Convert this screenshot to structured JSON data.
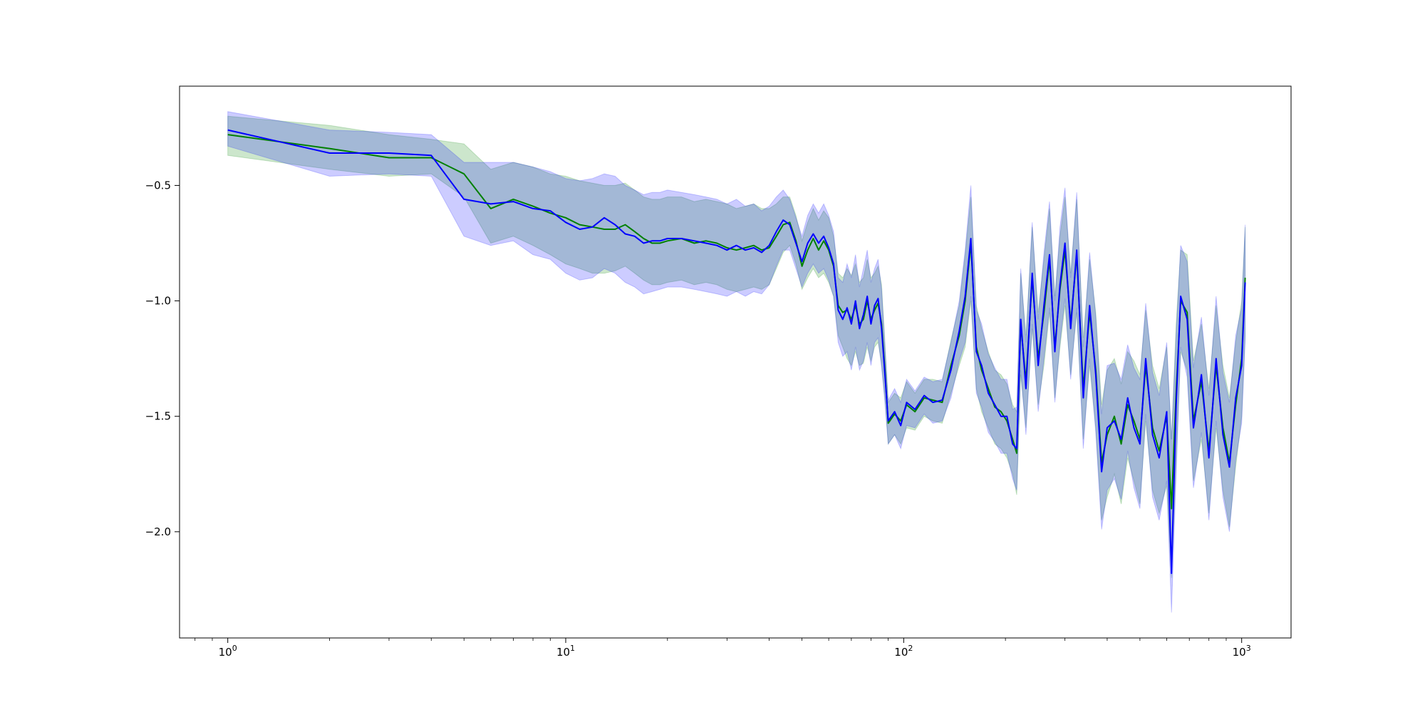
{
  "chart_data": {
    "type": "line",
    "title": "",
    "xlabel": "",
    "ylabel": "",
    "xscale": "log",
    "xlim": [
      0.72,
      1400
    ],
    "ylim": [
      -2.46,
      -0.07
    ],
    "grid": false,
    "legend": "none",
    "x_ticks": [
      {
        "value": 1,
        "base": "10",
        "exp": "0"
      },
      {
        "value": 10,
        "base": "10",
        "exp": "1"
      },
      {
        "value": 100,
        "base": "10",
        "exp": "2"
      },
      {
        "value": 1000,
        "base": "10",
        "exp": "3"
      }
    ],
    "y_ticks": [
      {
        "value": -0.5,
        "label": "−0.5"
      },
      {
        "value": -1.0,
        "label": "−1.0"
      },
      {
        "value": -1.5,
        "label": "−1.5"
      },
      {
        "value": -2.0,
        "label": "−2.0"
      }
    ],
    "series": [
      {
        "color": "#008000",
        "band_color": "#008000",
        "x": [
          1,
          2,
          3,
          4,
          5,
          6,
          7,
          8,
          9,
          10,
          11,
          12,
          13,
          14,
          15,
          16,
          17,
          18,
          19,
          20,
          22,
          24,
          26,
          28,
          30,
          32,
          34,
          36,
          38,
          40,
          42,
          44,
          46,
          48,
          50,
          52,
          54,
          56,
          58,
          60,
          62,
          64,
          66,
          68,
          70,
          72,
          74,
          76,
          78,
          80,
          82,
          84,
          86,
          88,
          90,
          94,
          98,
          102,
          108,
          115,
          122,
          130,
          138,
          146,
          152,
          158,
          164,
          170,
          178,
          186,
          194,
          202,
          210,
          216,
          222,
          230,
          240,
          250,
          260,
          270,
          280,
          290,
          300,
          312,
          325,
          340,
          355,
          370,
          385,
          400,
          420,
          440,
          460,
          480,
          500,
          520,
          545,
          570,
          600,
          620,
          640,
          660,
          690,
          720,
          760,
          800,
          840,
          880,
          920,
          960,
          1000,
          1024
        ],
        "y": [
          -0.28,
          -0.34,
          -0.38,
          -0.38,
          -0.45,
          -0.6,
          -0.56,
          -0.59,
          -0.62,
          -0.64,
          -0.67,
          -0.68,
          -0.69,
          -0.69,
          -0.67,
          -0.7,
          -0.73,
          -0.75,
          -0.75,
          -0.74,
          -0.73,
          -0.75,
          -0.74,
          -0.75,
          -0.77,
          -0.78,
          -0.77,
          -0.76,
          -0.78,
          -0.77,
          -0.72,
          -0.67,
          -0.66,
          -0.74,
          -0.85,
          -0.78,
          -0.73,
          -0.78,
          -0.74,
          -0.78,
          -0.85,
          -1.02,
          -1.05,
          -1.04,
          -1.08,
          -1.02,
          -1.1,
          -1.08,
          -1.0,
          -1.08,
          -1.04,
          -1.01,
          -1.1,
          -1.3,
          -1.53,
          -1.49,
          -1.52,
          -1.45,
          -1.48,
          -1.42,
          -1.43,
          -1.44,
          -1.28,
          -1.15,
          -1.0,
          -0.75,
          -1.2,
          -1.3,
          -1.38,
          -1.46,
          -1.48,
          -1.52,
          -1.6,
          -1.66,
          -1.1,
          -1.35,
          -0.9,
          -1.25,
          -1.05,
          -0.82,
          -1.2,
          -0.95,
          -0.78,
          -1.1,
          -0.8,
          -1.38,
          -1.05,
          -1.3,
          -1.7,
          -1.58,
          -1.5,
          -1.62,
          -1.45,
          -1.52,
          -1.6,
          -1.28,
          -1.55,
          -1.65,
          -1.5,
          -1.9,
          -1.4,
          -1.0,
          -1.05,
          -1.52,
          -1.35,
          -1.65,
          -1.28,
          -1.55,
          -1.7,
          -1.45,
          -1.25,
          -0.9
        ],
        "y_lower": [
          -0.37,
          -0.43,
          -0.46,
          -0.45,
          -0.55,
          -0.75,
          -0.72,
          -0.76,
          -0.8,
          -0.84,
          -0.86,
          -0.88,
          -0.88,
          -0.87,
          -0.85,
          -0.88,
          -0.91,
          -0.93,
          -0.93,
          -0.92,
          -0.91,
          -0.93,
          -0.92,
          -0.93,
          -0.95,
          -0.96,
          -0.95,
          -0.94,
          -0.95,
          -0.93,
          -0.86,
          -0.79,
          -0.76,
          -0.84,
          -0.95,
          -0.9,
          -0.86,
          -0.9,
          -0.88,
          -0.92,
          -0.98,
          -1.15,
          -1.2,
          -1.25,
          -1.28,
          -1.22,
          -1.28,
          -1.27,
          -1.2,
          -1.26,
          -1.2,
          -1.18,
          -1.27,
          -1.42,
          -1.62,
          -1.58,
          -1.62,
          -1.55,
          -1.56,
          -1.5,
          -1.52,
          -1.53,
          -1.4,
          -1.28,
          -1.2,
          -1.0,
          -1.38,
          -1.48,
          -1.55,
          -1.62,
          -1.64,
          -1.68,
          -1.75,
          -1.84,
          -1.32,
          -1.55,
          -1.12,
          -1.45,
          -1.28,
          -1.05,
          -1.42,
          -1.2,
          -1.02,
          -1.32,
          -1.05,
          -1.6,
          -1.28,
          -1.55,
          -1.95,
          -1.85,
          -1.75,
          -1.88,
          -1.68,
          -1.78,
          -1.88,
          -1.52,
          -1.82,
          -1.92,
          -1.8,
          -2.2,
          -1.7,
          -1.22,
          -1.3,
          -1.78,
          -1.6,
          -1.92,
          -1.55,
          -1.82,
          -1.98,
          -1.72,
          -1.5,
          -1.15
        ],
        "y_upper": [
          -0.2,
          -0.24,
          -0.28,
          -0.3,
          -0.32,
          -0.43,
          -0.4,
          -0.42,
          -0.45,
          -0.46,
          -0.48,
          -0.49,
          -0.5,
          -0.5,
          -0.49,
          -0.52,
          -0.55,
          -0.56,
          -0.56,
          -0.55,
          -0.55,
          -0.57,
          -0.56,
          -0.57,
          -0.58,
          -0.6,
          -0.59,
          -0.58,
          -0.6,
          -0.6,
          -0.58,
          -0.55,
          -0.55,
          -0.63,
          -0.74,
          -0.66,
          -0.6,
          -0.65,
          -0.61,
          -0.64,
          -0.72,
          -0.88,
          -0.9,
          -0.86,
          -0.89,
          -0.84,
          -0.92,
          -0.9,
          -0.82,
          -0.9,
          -0.88,
          -0.85,
          -0.93,
          -1.18,
          -1.44,
          -1.4,
          -1.42,
          -1.35,
          -1.4,
          -1.34,
          -1.34,
          -1.35,
          -1.17,
          -1.02,
          -0.8,
          -0.55,
          -1.02,
          -1.12,
          -1.22,
          -1.3,
          -1.32,
          -1.36,
          -1.45,
          -1.48,
          -0.88,
          -1.15,
          -0.68,
          -1.05,
          -0.82,
          -0.6,
          -0.98,
          -0.72,
          -0.55,
          -0.88,
          -0.56,
          -1.16,
          -0.82,
          -1.05,
          -1.45,
          -1.3,
          -1.25,
          -1.36,
          -1.22,
          -1.26,
          -1.32,
          -1.04,
          -1.28,
          -1.38,
          -1.2,
          -1.6,
          -1.1,
          -0.78,
          -0.8,
          -1.26,
          -1.1,
          -1.38,
          -1.02,
          -1.28,
          -1.42,
          -1.18,
          -1.0,
          -0.68
        ]
      },
      {
        "color": "#0000ff",
        "band_color": "#0000ff",
        "x": [
          1,
          2,
          3,
          4,
          5,
          6,
          7,
          8,
          9,
          10,
          11,
          12,
          13,
          14,
          15,
          16,
          17,
          18,
          19,
          20,
          22,
          24,
          26,
          28,
          30,
          32,
          34,
          36,
          38,
          40,
          42,
          44,
          46,
          48,
          50,
          52,
          54,
          56,
          58,
          60,
          62,
          64,
          66,
          68,
          70,
          72,
          74,
          76,
          78,
          80,
          82,
          84,
          86,
          88,
          90,
          94,
          98,
          102,
          108,
          115,
          122,
          130,
          138,
          146,
          152,
          158,
          164,
          170,
          178,
          186,
          194,
          202,
          210,
          216,
          222,
          230,
          240,
          250,
          260,
          270,
          280,
          290,
          300,
          312,
          325,
          340,
          355,
          370,
          385,
          400,
          420,
          440,
          460,
          480,
          500,
          520,
          545,
          570,
          600,
          620,
          640,
          660,
          690,
          720,
          760,
          800,
          840,
          880,
          920,
          960,
          1000,
          1024
        ],
        "y": [
          -0.26,
          -0.36,
          -0.36,
          -0.37,
          -0.56,
          -0.58,
          -0.57,
          -0.6,
          -0.61,
          -0.66,
          -0.69,
          -0.68,
          -0.64,
          -0.67,
          -0.71,
          -0.72,
          -0.75,
          -0.74,
          -0.74,
          -0.73,
          -0.73,
          -0.74,
          -0.75,
          -0.76,
          -0.78,
          -0.76,
          -0.78,
          -0.77,
          -0.79,
          -0.76,
          -0.7,
          -0.65,
          -0.67,
          -0.75,
          -0.83,
          -0.75,
          -0.71,
          -0.75,
          -0.72,
          -0.77,
          -0.84,
          -1.04,
          -1.08,
          -1.03,
          -1.1,
          -1.0,
          -1.12,
          -1.06,
          -0.98,
          -1.1,
          -1.02,
          -0.99,
          -1.12,
          -1.32,
          -1.52,
          -1.48,
          -1.54,
          -1.44,
          -1.47,
          -1.41,
          -1.44,
          -1.43,
          -1.3,
          -1.13,
          -0.98,
          -0.73,
          -1.22,
          -1.28,
          -1.4,
          -1.45,
          -1.5,
          -1.5,
          -1.62,
          -1.64,
          -1.08,
          -1.38,
          -0.88,
          -1.28,
          -1.02,
          -0.8,
          -1.22,
          -0.93,
          -0.75,
          -1.12,
          -0.78,
          -1.42,
          -1.02,
          -1.32,
          -1.74,
          -1.55,
          -1.52,
          -1.6,
          -1.42,
          -1.55,
          -1.62,
          -1.25,
          -1.58,
          -1.68,
          -1.48,
          -2.18,
          -1.45,
          -0.98,
          -1.08,
          -1.55,
          -1.32,
          -1.68,
          -1.25,
          -1.58,
          -1.72,
          -1.42,
          -1.28,
          -0.92
        ],
        "y_lower": [
          -0.33,
          -0.46,
          -0.45,
          -0.46,
          -0.72,
          -0.76,
          -0.74,
          -0.8,
          -0.82,
          -0.88,
          -0.91,
          -0.9,
          -0.86,
          -0.88,
          -0.92,
          -0.94,
          -0.97,
          -0.96,
          -0.95,
          -0.94,
          -0.94,
          -0.95,
          -0.96,
          -0.97,
          -0.98,
          -0.96,
          -0.98,
          -0.96,
          -0.97,
          -0.93,
          -0.85,
          -0.78,
          -0.78,
          -0.86,
          -0.94,
          -0.88,
          -0.84,
          -0.88,
          -0.86,
          -0.91,
          -0.98,
          -1.18,
          -1.24,
          -1.22,
          -1.3,
          -1.2,
          -1.3,
          -1.26,
          -1.18,
          -1.28,
          -1.18,
          -1.16,
          -1.29,
          -1.44,
          -1.62,
          -1.58,
          -1.64,
          -1.54,
          -1.55,
          -1.49,
          -1.53,
          -1.52,
          -1.42,
          -1.26,
          -1.18,
          -0.98,
          -1.4,
          -1.46,
          -1.57,
          -1.61,
          -1.66,
          -1.66,
          -1.77,
          -1.82,
          -1.3,
          -1.58,
          -1.1,
          -1.48,
          -1.25,
          -1.03,
          -1.44,
          -1.18,
          -0.99,
          -1.34,
          -1.03,
          -1.64,
          -1.25,
          -1.57,
          -1.99,
          -1.82,
          -1.77,
          -1.86,
          -1.65,
          -1.81,
          -1.9,
          -1.49,
          -1.85,
          -1.95,
          -1.78,
          -2.35,
          -1.75,
          -1.2,
          -1.33,
          -1.81,
          -1.57,
          -1.95,
          -1.52,
          -1.85,
          -2.0,
          -1.69,
          -1.53,
          -1.17
        ],
        "y_upper": [
          -0.18,
          -0.26,
          -0.27,
          -0.28,
          -0.4,
          -0.4,
          -0.4,
          -0.42,
          -0.44,
          -0.47,
          -0.48,
          -0.47,
          -0.45,
          -0.46,
          -0.5,
          -0.52,
          -0.54,
          -0.53,
          -0.53,
          -0.52,
          -0.53,
          -0.54,
          -0.55,
          -0.56,
          -0.58,
          -0.56,
          -0.59,
          -0.58,
          -0.61,
          -0.59,
          -0.55,
          -0.52,
          -0.56,
          -0.64,
          -0.72,
          -0.63,
          -0.58,
          -0.62,
          -0.58,
          -0.63,
          -0.7,
          -0.9,
          -0.92,
          -0.84,
          -0.9,
          -0.8,
          -0.94,
          -0.86,
          -0.78,
          -0.92,
          -0.86,
          -0.82,
          -0.95,
          -1.2,
          -1.43,
          -1.38,
          -1.44,
          -1.34,
          -1.39,
          -1.33,
          -1.35,
          -1.34,
          -1.18,
          -1.0,
          -0.78,
          -0.5,
          -1.04,
          -1.1,
          -1.23,
          -1.29,
          -1.34,
          -1.34,
          -1.47,
          -1.46,
          -0.86,
          -1.18,
          -0.66,
          -1.08,
          -0.79,
          -0.57,
          -1.0,
          -0.68,
          -0.51,
          -0.9,
          -0.53,
          -1.2,
          -0.79,
          -1.07,
          -1.49,
          -1.28,
          -1.27,
          -1.34,
          -1.19,
          -1.29,
          -1.34,
          -1.01,
          -1.31,
          -1.41,
          -1.18,
          -1.6,
          -1.15,
          -0.76,
          -0.83,
          -1.29,
          -1.07,
          -1.41,
          -0.98,
          -1.31,
          -1.44,
          -1.15,
          -1.03,
          -0.67
        ]
      }
    ]
  }
}
